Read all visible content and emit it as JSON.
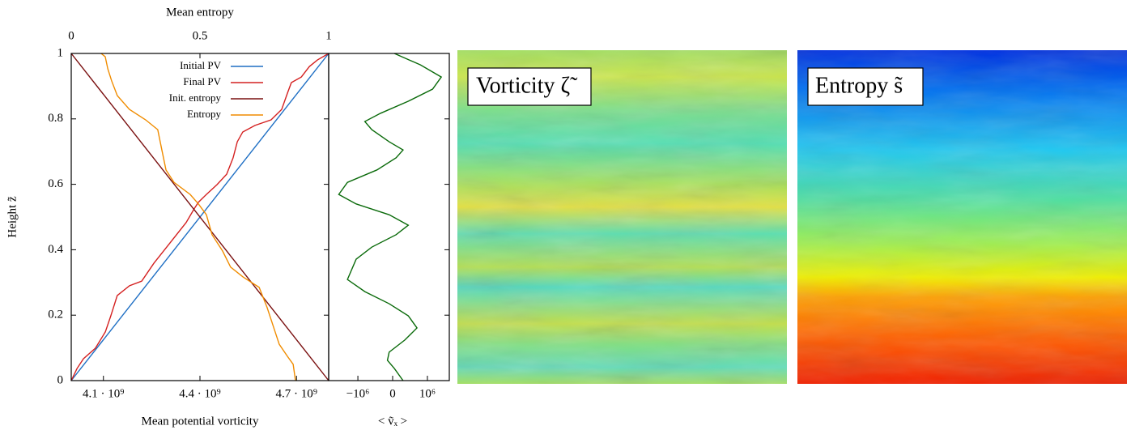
{
  "chart_data": [
    {
      "type": "line",
      "ylabel": "Height z̃",
      "xlabel": "Mean potential vorticity",
      "x2label": "Mean entropy",
      "xlim": [
        4000000000,
        4800000000
      ],
      "xticks": [
        {
          "value": 4100000000,
          "label": "4.1 · 10⁹"
        },
        {
          "value": 4400000000,
          "label": "4.4 · 10⁹"
        },
        {
          "value": 4700000000,
          "label": "4.7 · 10⁹"
        }
      ],
      "x2lim": [
        0,
        1
      ],
      "x2ticks": [
        0,
        0.5,
        1
      ],
      "ylim": [
        0,
        1
      ],
      "yticks": [
        0,
        0.2,
        0.4,
        0.6,
        0.8,
        1
      ],
      "legend": "upper right",
      "series": [
        {
          "name": "Initial PV",
          "color": "#1f6fc4",
          "axis": "x",
          "x": [
            4000000000,
            4800000000
          ],
          "y": [
            0,
            1
          ]
        },
        {
          "name": "Final PV",
          "color": "#d42020",
          "axis": "x",
          "x": [
            4000000000,
            4018000000,
            4038000000,
            4075000000,
            4106000000,
            4123000000,
            4143000000,
            4181000000,
            4219000000,
            4257000000,
            4307000000,
            4357000000,
            4382000000,
            4395000000,
            4420000000,
            4453000000,
            4483000000,
            4503000000,
            4516000000,
            4533000000,
            4571000000,
            4621000000,
            4654000000,
            4672000000,
            4684000000,
            4715000000,
            4740000000,
            4765000000,
            4800000000
          ],
          "y": [
            0,
            0.037,
            0.067,
            0.099,
            0.149,
            0.198,
            0.26,
            0.29,
            0.304,
            0.359,
            0.421,
            0.483,
            0.525,
            0.545,
            0.569,
            0.599,
            0.631,
            0.681,
            0.73,
            0.76,
            0.78,
            0.797,
            0.829,
            0.879,
            0.911,
            0.928,
            0.96,
            0.98,
            1
          ]
        },
        {
          "name": "Init. entropy",
          "color": "#7a1010",
          "axis": "x2",
          "x": [
            0,
            1
          ],
          "y": [
            1,
            0
          ]
        },
        {
          "name": "Entropy",
          "color": "#f08c00",
          "axis": "x2",
          "x": [
            0.116,
            0.132,
            0.142,
            0.157,
            0.179,
            0.226,
            0.289,
            0.336,
            0.352,
            0.368,
            0.399,
            0.462,
            0.494,
            0.525,
            0.547,
            0.588,
            0.619,
            0.667,
            0.73,
            0.761,
            0.792,
            0.808,
            0.84,
            0.862,
            0.871
          ],
          "y": [
            1,
            0.99,
            0.953,
            0.916,
            0.871,
            0.829,
            0.797,
            0.767,
            0.705,
            0.644,
            0.606,
            0.569,
            0.54,
            0.507,
            0.446,
            0.396,
            0.347,
            0.317,
            0.285,
            0.223,
            0.149,
            0.111,
            0.074,
            0.05,
            0
          ]
        }
      ]
    },
    {
      "type": "line",
      "xlabel": "< ṽₓ >",
      "xlim": [
        -1840000,
        1630000
      ],
      "xticks": [
        {
          "value": -1000000,
          "label": "−10⁶"
        },
        0,
        {
          "value": 1000000,
          "label": "10⁶"
        }
      ],
      "ylim": [
        0,
        1
      ],
      "series": [
        {
          "color": "#0a6a0a",
          "x": [
            50000,
            800000,
            1400000,
            1150000,
            450000,
            -350000,
            -800000,
            -600000,
            -100000,
            300000,
            100000,
            -450000,
            -1300000,
            -1550000,
            -1050000,
            -100000,
            450000,
            100000,
            -600000,
            -1050000,
            -1300000,
            -800000,
            -100000,
            450000,
            700000,
            350000,
            -100000,
            -150000,
            50000,
            300000
          ],
          "y": [
            1,
            0.965,
            0.928,
            0.891,
            0.854,
            0.817,
            0.792,
            0.767,
            0.73,
            0.705,
            0.681,
            0.644,
            0.606,
            0.569,
            0.54,
            0.507,
            0.475,
            0.446,
            0.408,
            0.371,
            0.309,
            0.272,
            0.235,
            0.198,
            0.161,
            0.124,
            0.087,
            0.062,
            0.037,
            0
          ]
        }
      ]
    }
  ],
  "images": [
    {
      "label": "Vorticity ζ̃"
    },
    {
      "label": "Entropy s̃"
    }
  ]
}
